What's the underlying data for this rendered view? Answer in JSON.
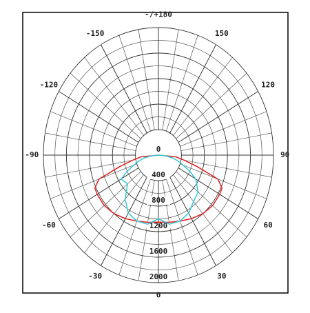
{
  "chart_data": {
    "type": "polar",
    "x": [
      -90,
      -85,
      -80,
      -75,
      -70,
      -65,
      -60,
      -50,
      -40,
      -30,
      -20,
      -10,
      0,
      10,
      20,
      30,
      40,
      50,
      60,
      65,
      70,
      75,
      80,
      85,
      90
    ],
    "series": [
      {
        "color": "#e02020",
        "values": [
          0,
          300,
          450,
          700,
          1100,
          1220,
          1230,
          1230,
          1200,
          1150,
          1100,
          1070,
          1050,
          1070,
          1100,
          1150,
          1200,
          1230,
          1230,
          1220,
          1100,
          700,
          450,
          300,
          0
        ]
      },
      {
        "color": "#30c8d8",
        "values": [
          0,
          120,
          250,
          350,
          450,
          600,
          750,
          700,
          900,
          1050,
          1100,
          1100,
          1000,
          1100,
          1100,
          1050,
          950,
          900,
          750,
          600,
          450,
          350,
          250,
          120,
          0
        ]
      }
    ],
    "ylim": [
      0,
      2000
    ],
    "yticks": [
      0,
      400,
      800,
      1200,
      1600,
      2000
    ],
    "xticks": [
      -150,
      -120,
      -90,
      -60,
      -30,
      0,
      30,
      60,
      90,
      120,
      150,
      {
        "value": 180,
        "label": "-/+180"
      }
    ]
  }
}
